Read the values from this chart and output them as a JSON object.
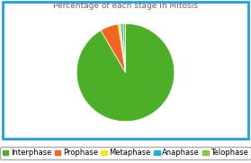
{
  "title": "Percentage of each stage in Mitosis",
  "labels": [
    "Interphase",
    "Prophase",
    "Metaphase",
    "Anaphase",
    "Telophase"
  ],
  "values": [
    91.0,
    6.0,
    0.8,
    0.8,
    0.8
  ],
  "colors": [
    "#4caf27",
    "#f26522",
    "#f5e626",
    "#29abe2",
    "#8dc63f"
  ],
  "background_color": "#ffffff",
  "border_color": "#1da1e0",
  "title_fontsize": 6.5,
  "legend_fontsize": 6.0,
  "startangle": 90,
  "figsize": [
    2.79,
    1.81
  ],
  "dpi": 100
}
